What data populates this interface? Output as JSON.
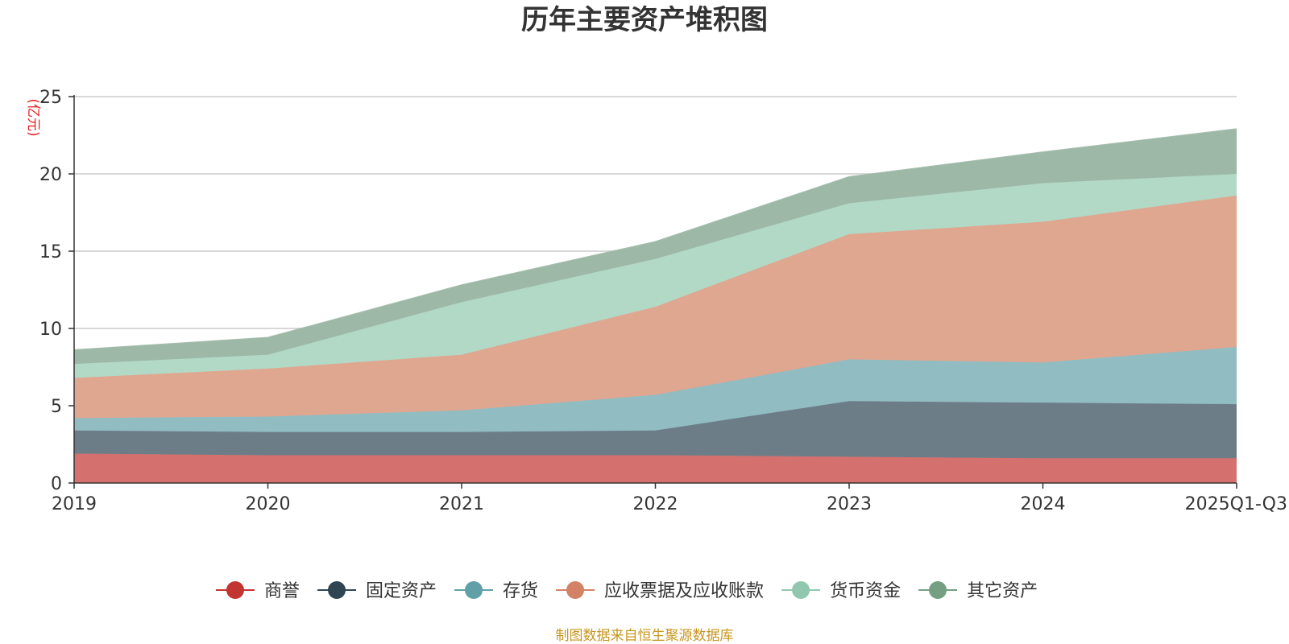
{
  "chart_data": {
    "type": "area",
    "stacked": true,
    "title": "历年主要资产堆积图",
    "unit_label": "(亿元)",
    "categories": [
      "2019",
      "2020",
      "2021",
      "2022",
      "2023",
      "2024",
      "2025Q1-Q3"
    ],
    "ylim": [
      0,
      25
    ],
    "yticks": [
      0,
      5,
      10,
      15,
      20,
      25
    ],
    "grid": true,
    "legend_position": "bottom-center",
    "series": [
      {
        "name": "商誉",
        "values": [
          1.9,
          1.8,
          1.8,
          1.8,
          1.7,
          1.6,
          1.6
        ],
        "color": "#c23531",
        "fill": "#d4706d"
      },
      {
        "name": "固定资产",
        "values": [
          1.5,
          1.5,
          1.5,
          1.6,
          3.6,
          3.6,
          3.5
        ],
        "color": "#2f4554",
        "fill": "#6d7d88"
      },
      {
        "name": "存货",
        "values": [
          0.8,
          1.0,
          1.4,
          2.3,
          2.7,
          2.6,
          3.7
        ],
        "color": "#61a0a8",
        "fill": "#90bcc2"
      },
      {
        "name": "应收票据及应收账款",
        "values": [
          2.6,
          3.1,
          3.6,
          5.7,
          8.1,
          9.1,
          9.8
        ],
        "color": "#d48265",
        "fill": "#dfa690"
      },
      {
        "name": "货币资金",
        "values": [
          0.9,
          0.9,
          3.4,
          3.1,
          2.0,
          2.5,
          1.4
        ],
        "color": "#91c7ae",
        "fill": "#b2d8c6"
      },
      {
        "name": "其它资产",
        "values": [
          0.9,
          1.1,
          1.1,
          1.1,
          1.7,
          2.0,
          2.9
        ],
        "color": "#749f83",
        "fill": "#9db8a6"
      }
    ],
    "source": "制图数据来自恒生聚源数据库"
  }
}
